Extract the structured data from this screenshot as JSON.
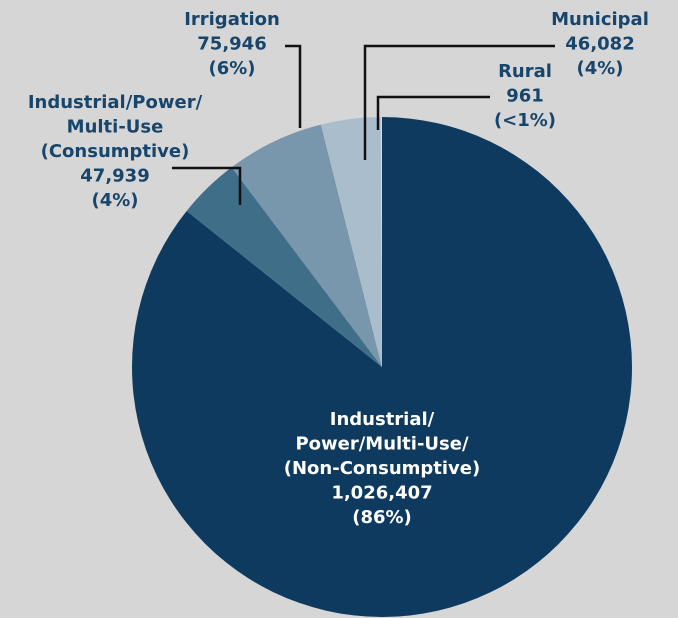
{
  "chart_data": {
    "type": "pie",
    "categories": [
      [
        "Industrial/",
        "Power/Multi-Use/",
        "(Non-Consumptive)"
      ],
      [
        "Industrial/Power/",
        "Multi-Use",
        "(Consumptive)"
      ],
      [
        "Irrigation"
      ],
      [
        "Municipal"
      ],
      [
        "Rural"
      ]
    ],
    "values": [
      1026407,
      47939,
      75946,
      46082,
      961
    ],
    "value_labels": [
      "1,026,407",
      "47,939",
      "75,946",
      "46,082",
      "961"
    ],
    "percent_labels": [
      "(86%)",
      "(4%)",
      "(6%)",
      "(4%)",
      "(<1%)"
    ],
    "colors": [
      "#0d3a5e",
      "#3f6e89",
      "#7896ac",
      "#a9bdcd",
      "#d2dde6"
    ]
  }
}
